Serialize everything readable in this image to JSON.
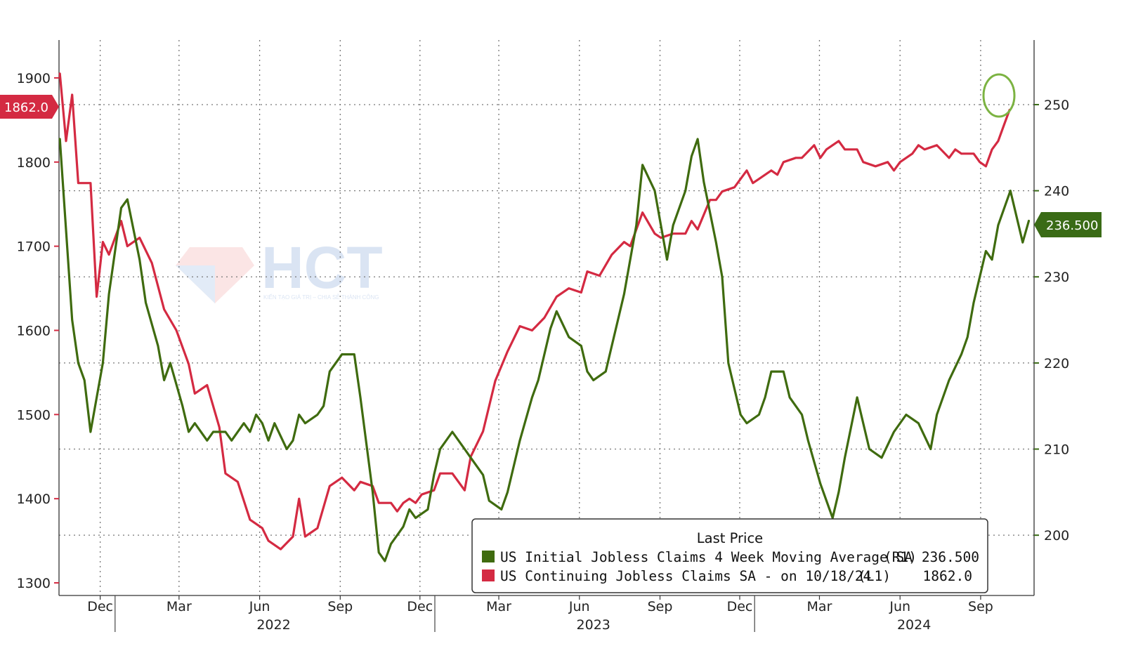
{
  "watermark": {
    "brand": "HCT",
    "tagline": "KIẾN TẠO GIÁ TRỊ – CHIA SẺ THÀNH CÔNG"
  },
  "chart_data": {
    "type": "line",
    "legend": {
      "title": "Last Price",
      "entries": [
        {
          "label": "US Initial Jobless Claims 4 Week Moving Average SA",
          "axis": "(R1)",
          "value": "236.500",
          "color": "#3f6b0f"
        },
        {
          "label": "US Continuing Jobless Claims SA -  on 10/18/24",
          "axis": "(L1)",
          "value": "1862.0",
          "color": "#d42a42"
        }
      ],
      "placement": "bottom-right"
    },
    "x_axis": {
      "range": [
        "2021-10-29",
        "2024-11-15"
      ],
      "month_labels": [
        {
          "label": "Dec",
          "date": "2021-12-15"
        },
        {
          "label": "Mar",
          "date": "2022-03-15"
        },
        {
          "label": "Jun",
          "date": "2022-06-15"
        },
        {
          "label": "Sep",
          "date": "2022-09-15"
        },
        {
          "label": "Dec",
          "date": "2022-12-15"
        },
        {
          "label": "Mar",
          "date": "2023-03-15"
        },
        {
          "label": "Jun",
          "date": "2023-06-15"
        },
        {
          "label": "Sep",
          "date": "2023-09-15"
        },
        {
          "label": "Dec",
          "date": "2023-12-15"
        },
        {
          "label": "Mar",
          "date": "2024-03-15"
        },
        {
          "label": "Jun",
          "date": "2024-06-15"
        },
        {
          "label": "Sep",
          "date": "2024-09-15"
        }
      ],
      "year_labels": [
        {
          "label": "2022",
          "date": "2022-07-01"
        },
        {
          "label": "2023",
          "date": "2023-07-01"
        },
        {
          "label": "2024",
          "date": "2024-07-01"
        }
      ],
      "year_dividers": [
        "2022-01-01",
        "2023-01-01",
        "2024-01-01"
      ]
    },
    "y_left": {
      "range": [
        1285,
        1945
      ],
      "ticks": [
        "1300",
        "1400",
        "1500",
        "1600",
        "1700",
        "1800",
        "1900"
      ],
      "last_value_tag": "1862.0"
    },
    "y_right": {
      "range": [
        193,
        257.5
      ],
      "ticks": [
        "200",
        "210",
        "220",
        "230",
        "240",
        "250"
      ],
      "last_value_tag": "236.500"
    },
    "grid": true,
    "series": [
      {
        "name": "US Continuing Jobless Claims SA -  on 10/18/24",
        "axis": "left",
        "color": "#d42a42",
        "points": [
          [
            "2021-10-30",
            1905
          ],
          [
            "2021-11-06",
            1825
          ],
          [
            "2021-11-13",
            1880
          ],
          [
            "2021-11-20",
            1775
          ],
          [
            "2021-12-04",
            1775
          ],
          [
            "2021-12-11",
            1640
          ],
          [
            "2021-12-18",
            1705
          ],
          [
            "2021-12-25",
            1690
          ],
          [
            "2022-01-08",
            1730
          ],
          [
            "2022-01-15",
            1700
          ],
          [
            "2022-01-29",
            1710
          ],
          [
            "2022-02-12",
            1680
          ],
          [
            "2022-02-26",
            1625
          ],
          [
            "2022-03-12",
            1600
          ],
          [
            "2022-03-26",
            1560
          ],
          [
            "2022-04-02",
            1525
          ],
          [
            "2022-04-16",
            1535
          ],
          [
            "2022-04-30",
            1485
          ],
          [
            "2022-05-07",
            1430
          ],
          [
            "2022-05-21",
            1420
          ],
          [
            "2022-06-04",
            1375
          ],
          [
            "2022-06-18",
            1365
          ],
          [
            "2022-06-25",
            1350
          ],
          [
            "2022-07-09",
            1340
          ],
          [
            "2022-07-23",
            1355
          ],
          [
            "2022-07-30",
            1400
          ],
          [
            "2022-08-06",
            1355
          ],
          [
            "2022-08-20",
            1365
          ],
          [
            "2022-09-03",
            1415
          ],
          [
            "2022-09-17",
            1425
          ],
          [
            "2022-10-01",
            1410
          ],
          [
            "2022-10-08",
            1420
          ],
          [
            "2022-10-22",
            1415
          ],
          [
            "2022-10-29",
            1395
          ],
          [
            "2022-11-12",
            1395
          ],
          [
            "2022-11-19",
            1385
          ],
          [
            "2022-11-26",
            1395
          ],
          [
            "2022-12-03",
            1400
          ],
          [
            "2022-12-10",
            1395
          ],
          [
            "2022-12-17",
            1405
          ],
          [
            "2022-12-31",
            1410
          ],
          [
            "2023-01-07",
            1430
          ],
          [
            "2023-01-21",
            1430
          ],
          [
            "2023-02-04",
            1410
          ],
          [
            "2023-02-11",
            1450
          ],
          [
            "2023-02-25",
            1480
          ],
          [
            "2023-03-11",
            1540
          ],
          [
            "2023-03-25",
            1575
          ],
          [
            "2023-04-08",
            1605
          ],
          [
            "2023-04-22",
            1600
          ],
          [
            "2023-05-06",
            1615
          ],
          [
            "2023-05-20",
            1640
          ],
          [
            "2023-06-03",
            1650
          ],
          [
            "2023-06-17",
            1645
          ],
          [
            "2023-06-24",
            1670
          ],
          [
            "2023-07-08",
            1665
          ],
          [
            "2023-07-22",
            1690
          ],
          [
            "2023-08-05",
            1705
          ],
          [
            "2023-08-12",
            1700
          ],
          [
            "2023-08-26",
            1740
          ],
          [
            "2023-09-09",
            1715
          ],
          [
            "2023-09-16",
            1710
          ],
          [
            "2023-09-30",
            1715
          ],
          [
            "2023-10-14",
            1715
          ],
          [
            "2023-10-21",
            1730
          ],
          [
            "2023-10-28",
            1720
          ],
          [
            "2023-11-11",
            1755
          ],
          [
            "2023-11-18",
            1755
          ],
          [
            "2023-11-25",
            1765
          ],
          [
            "2023-12-09",
            1770
          ],
          [
            "2023-12-16",
            1780
          ],
          [
            "2023-12-23",
            1790
          ],
          [
            "2023-12-30",
            1775
          ],
          [
            "2024-01-06",
            1780
          ],
          [
            "2024-01-20",
            1790
          ],
          [
            "2024-01-27",
            1785
          ],
          [
            "2024-02-03",
            1800
          ],
          [
            "2024-02-17",
            1805
          ],
          [
            "2024-02-24",
            1805
          ],
          [
            "2024-03-09",
            1820
          ],
          [
            "2024-03-16",
            1805
          ],
          [
            "2024-03-23",
            1815
          ],
          [
            "2024-04-06",
            1825
          ],
          [
            "2024-04-13",
            1815
          ],
          [
            "2024-04-27",
            1815
          ],
          [
            "2024-05-04",
            1800
          ],
          [
            "2024-05-18",
            1795
          ],
          [
            "2024-06-01",
            1800
          ],
          [
            "2024-06-08",
            1790
          ],
          [
            "2024-06-15",
            1800
          ],
          [
            "2024-06-29",
            1810
          ],
          [
            "2024-07-06",
            1820
          ],
          [
            "2024-07-13",
            1815
          ],
          [
            "2024-07-27",
            1820
          ],
          [
            "2024-08-10",
            1805
          ],
          [
            "2024-08-17",
            1815
          ],
          [
            "2024-08-24",
            1810
          ],
          [
            "2024-09-07",
            1810
          ],
          [
            "2024-09-14",
            1800
          ],
          [
            "2024-09-21",
            1795
          ],
          [
            "2024-09-28",
            1815
          ],
          [
            "2024-10-05",
            1825
          ],
          [
            "2024-10-12",
            1845
          ],
          [
            "2024-10-18",
            1862
          ]
        ]
      },
      {
        "name": "US Initial Jobless Claims 4 Week Moving Average SA",
        "axis": "right",
        "color": "#3f6b0f",
        "points": [
          [
            "2021-10-30",
            246
          ],
          [
            "2021-11-13",
            225
          ],
          [
            "2021-11-20",
            220
          ],
          [
            "2021-11-27",
            218
          ],
          [
            "2021-12-04",
            212
          ],
          [
            "2021-12-18",
            220
          ],
          [
            "2021-12-25",
            228
          ],
          [
            "2022-01-08",
            238
          ],
          [
            "2022-01-15",
            239
          ],
          [
            "2022-01-29",
            232
          ],
          [
            "2022-02-05",
            227
          ],
          [
            "2022-02-19",
            222
          ],
          [
            "2022-02-26",
            218
          ],
          [
            "2022-03-05",
            220
          ],
          [
            "2022-03-19",
            215
          ],
          [
            "2022-03-26",
            212
          ],
          [
            "2022-04-02",
            213
          ],
          [
            "2022-04-16",
            211
          ],
          [
            "2022-04-23",
            212
          ],
          [
            "2022-05-07",
            212
          ],
          [
            "2022-05-14",
            211
          ],
          [
            "2022-05-28",
            213
          ],
          [
            "2022-06-04",
            212
          ],
          [
            "2022-06-11",
            214
          ],
          [
            "2022-06-18",
            213
          ],
          [
            "2022-06-25",
            211
          ],
          [
            "2022-07-02",
            213
          ],
          [
            "2022-07-16",
            210
          ],
          [
            "2022-07-23",
            211
          ],
          [
            "2022-07-30",
            214
          ],
          [
            "2022-08-06",
            213
          ],
          [
            "2022-08-20",
            214
          ],
          [
            "2022-08-27",
            215
          ],
          [
            "2022-09-03",
            219
          ],
          [
            "2022-09-17",
            221
          ],
          [
            "2022-10-01",
            221
          ],
          [
            "2022-10-08",
            216
          ],
          [
            "2022-10-22",
            205
          ],
          [
            "2022-10-29",
            198
          ],
          [
            "2022-11-05",
            197
          ],
          [
            "2022-11-12",
            199
          ],
          [
            "2022-11-19",
            200
          ],
          [
            "2022-11-26",
            201
          ],
          [
            "2022-12-03",
            203
          ],
          [
            "2022-12-10",
            202
          ],
          [
            "2022-12-24",
            203
          ],
          [
            "2022-12-31",
            207
          ],
          [
            "2023-01-07",
            210
          ],
          [
            "2023-01-21",
            212
          ],
          [
            "2023-02-04",
            210
          ],
          [
            "2023-02-11",
            209
          ],
          [
            "2023-02-25",
            207
          ],
          [
            "2023-03-04",
            204
          ],
          [
            "2023-03-18",
            203
          ],
          [
            "2023-03-25",
            205
          ],
          [
            "2023-04-08",
            211
          ],
          [
            "2023-04-22",
            216
          ],
          [
            "2023-04-29",
            218
          ],
          [
            "2023-05-13",
            224
          ],
          [
            "2023-05-20",
            226
          ],
          [
            "2023-06-03",
            223
          ],
          [
            "2023-06-17",
            222
          ],
          [
            "2023-06-24",
            219
          ],
          [
            "2023-07-01",
            218
          ],
          [
            "2023-07-15",
            219
          ],
          [
            "2023-07-22",
            222
          ],
          [
            "2023-08-05",
            228
          ],
          [
            "2023-08-19",
            236
          ],
          [
            "2023-08-26",
            243
          ],
          [
            "2023-09-09",
            240
          ],
          [
            "2023-09-23",
            232
          ],
          [
            "2023-09-30",
            236
          ],
          [
            "2023-10-14",
            240
          ],
          [
            "2023-10-21",
            244
          ],
          [
            "2023-10-28",
            246
          ],
          [
            "2023-11-04",
            241
          ],
          [
            "2023-11-18",
            234
          ],
          [
            "2023-11-25",
            230
          ],
          [
            "2023-12-02",
            220
          ],
          [
            "2023-12-16",
            214
          ],
          [
            "2023-12-23",
            213
          ],
          [
            "2024-01-06",
            214
          ],
          [
            "2024-01-13",
            216
          ],
          [
            "2024-01-20",
            219
          ],
          [
            "2024-02-03",
            219
          ],
          [
            "2024-02-10",
            216
          ],
          [
            "2024-02-24",
            214
          ],
          [
            "2024-03-02",
            211
          ],
          [
            "2024-03-16",
            206
          ],
          [
            "2024-03-30",
            202
          ],
          [
            "2024-04-06",
            205
          ],
          [
            "2024-04-13",
            209
          ],
          [
            "2024-04-27",
            216
          ],
          [
            "2024-05-04",
            213
          ],
          [
            "2024-05-11",
            210
          ],
          [
            "2024-05-25",
            209
          ],
          [
            "2024-06-08",
            212
          ],
          [
            "2024-06-22",
            214
          ],
          [
            "2024-07-06",
            213
          ],
          [
            "2024-07-20",
            210
          ],
          [
            "2024-07-27",
            214
          ],
          [
            "2024-08-10",
            218
          ],
          [
            "2024-08-24",
            221
          ],
          [
            "2024-08-31",
            223
          ],
          [
            "2024-09-07",
            227
          ],
          [
            "2024-09-21",
            233
          ],
          [
            "2024-09-28",
            232
          ],
          [
            "2024-10-05",
            236
          ],
          [
            "2024-10-19",
            240
          ],
          [
            "2024-11-02",
            234
          ],
          [
            "2024-11-09",
            236.5
          ]
        ]
      }
    ]
  }
}
